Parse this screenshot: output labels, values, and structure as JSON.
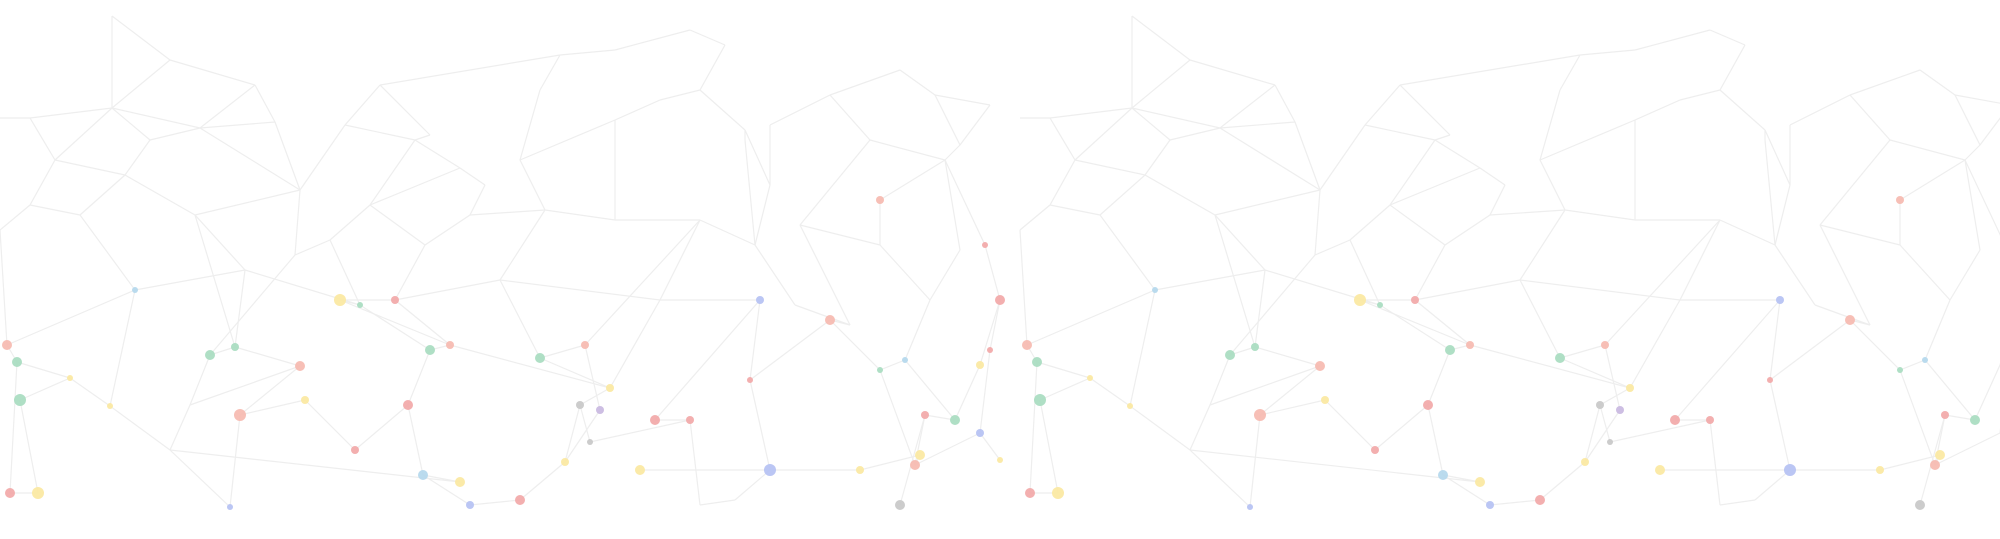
{
  "background": {
    "description_colors": {
      "background": "#ffffff",
      "line": "#eeeeee",
      "dot_palette": [
        "#f6b8ae",
        "#a6dcbf",
        "#fbe89f",
        "#b3d7ec",
        "#c8b7e0",
        "#b4c0f3",
        "#c6c6c6",
        "#f2a6a6"
      ]
    }
  }
}
